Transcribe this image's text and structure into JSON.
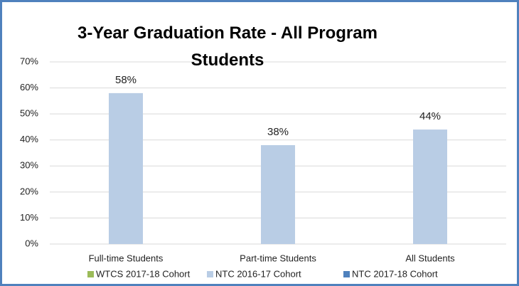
{
  "chart_data": {
    "type": "bar",
    "title": "3-Year Graduation Rate - All Program Students",
    "categories": [
      "Full-time Students",
      "Part-time Students",
      "All Students"
    ],
    "series": [
      {
        "name": "WTCS 2017-18 Cohort",
        "color": "#9bbb59",
        "values": [
          null,
          null,
          null
        ]
      },
      {
        "name": "NTC 2016-17 Cohort",
        "color": "#b9cde5",
        "values": [
          58,
          38,
          44
        ],
        "value_labels": [
          "58%",
          "38%",
          "44%"
        ]
      },
      {
        "name": "NTC 2017-18 Cohort",
        "color": "#4f81bd",
        "values": [
          null,
          null,
          null
        ]
      }
    ],
    "ylim": [
      0,
      70
    ],
    "yticks": [
      {
        "value": 0,
        "label": "0%"
      },
      {
        "value": 10,
        "label": "10%"
      },
      {
        "value": 20,
        "label": "20%"
      },
      {
        "value": 30,
        "label": "30%"
      },
      {
        "value": 40,
        "label": "40%"
      },
      {
        "value": 50,
        "label": "50%"
      },
      {
        "value": 60,
        "label": "60%"
      },
      {
        "value": 70,
        "label": "70%"
      }
    ],
    "grid": true,
    "legend": "bottom"
  }
}
